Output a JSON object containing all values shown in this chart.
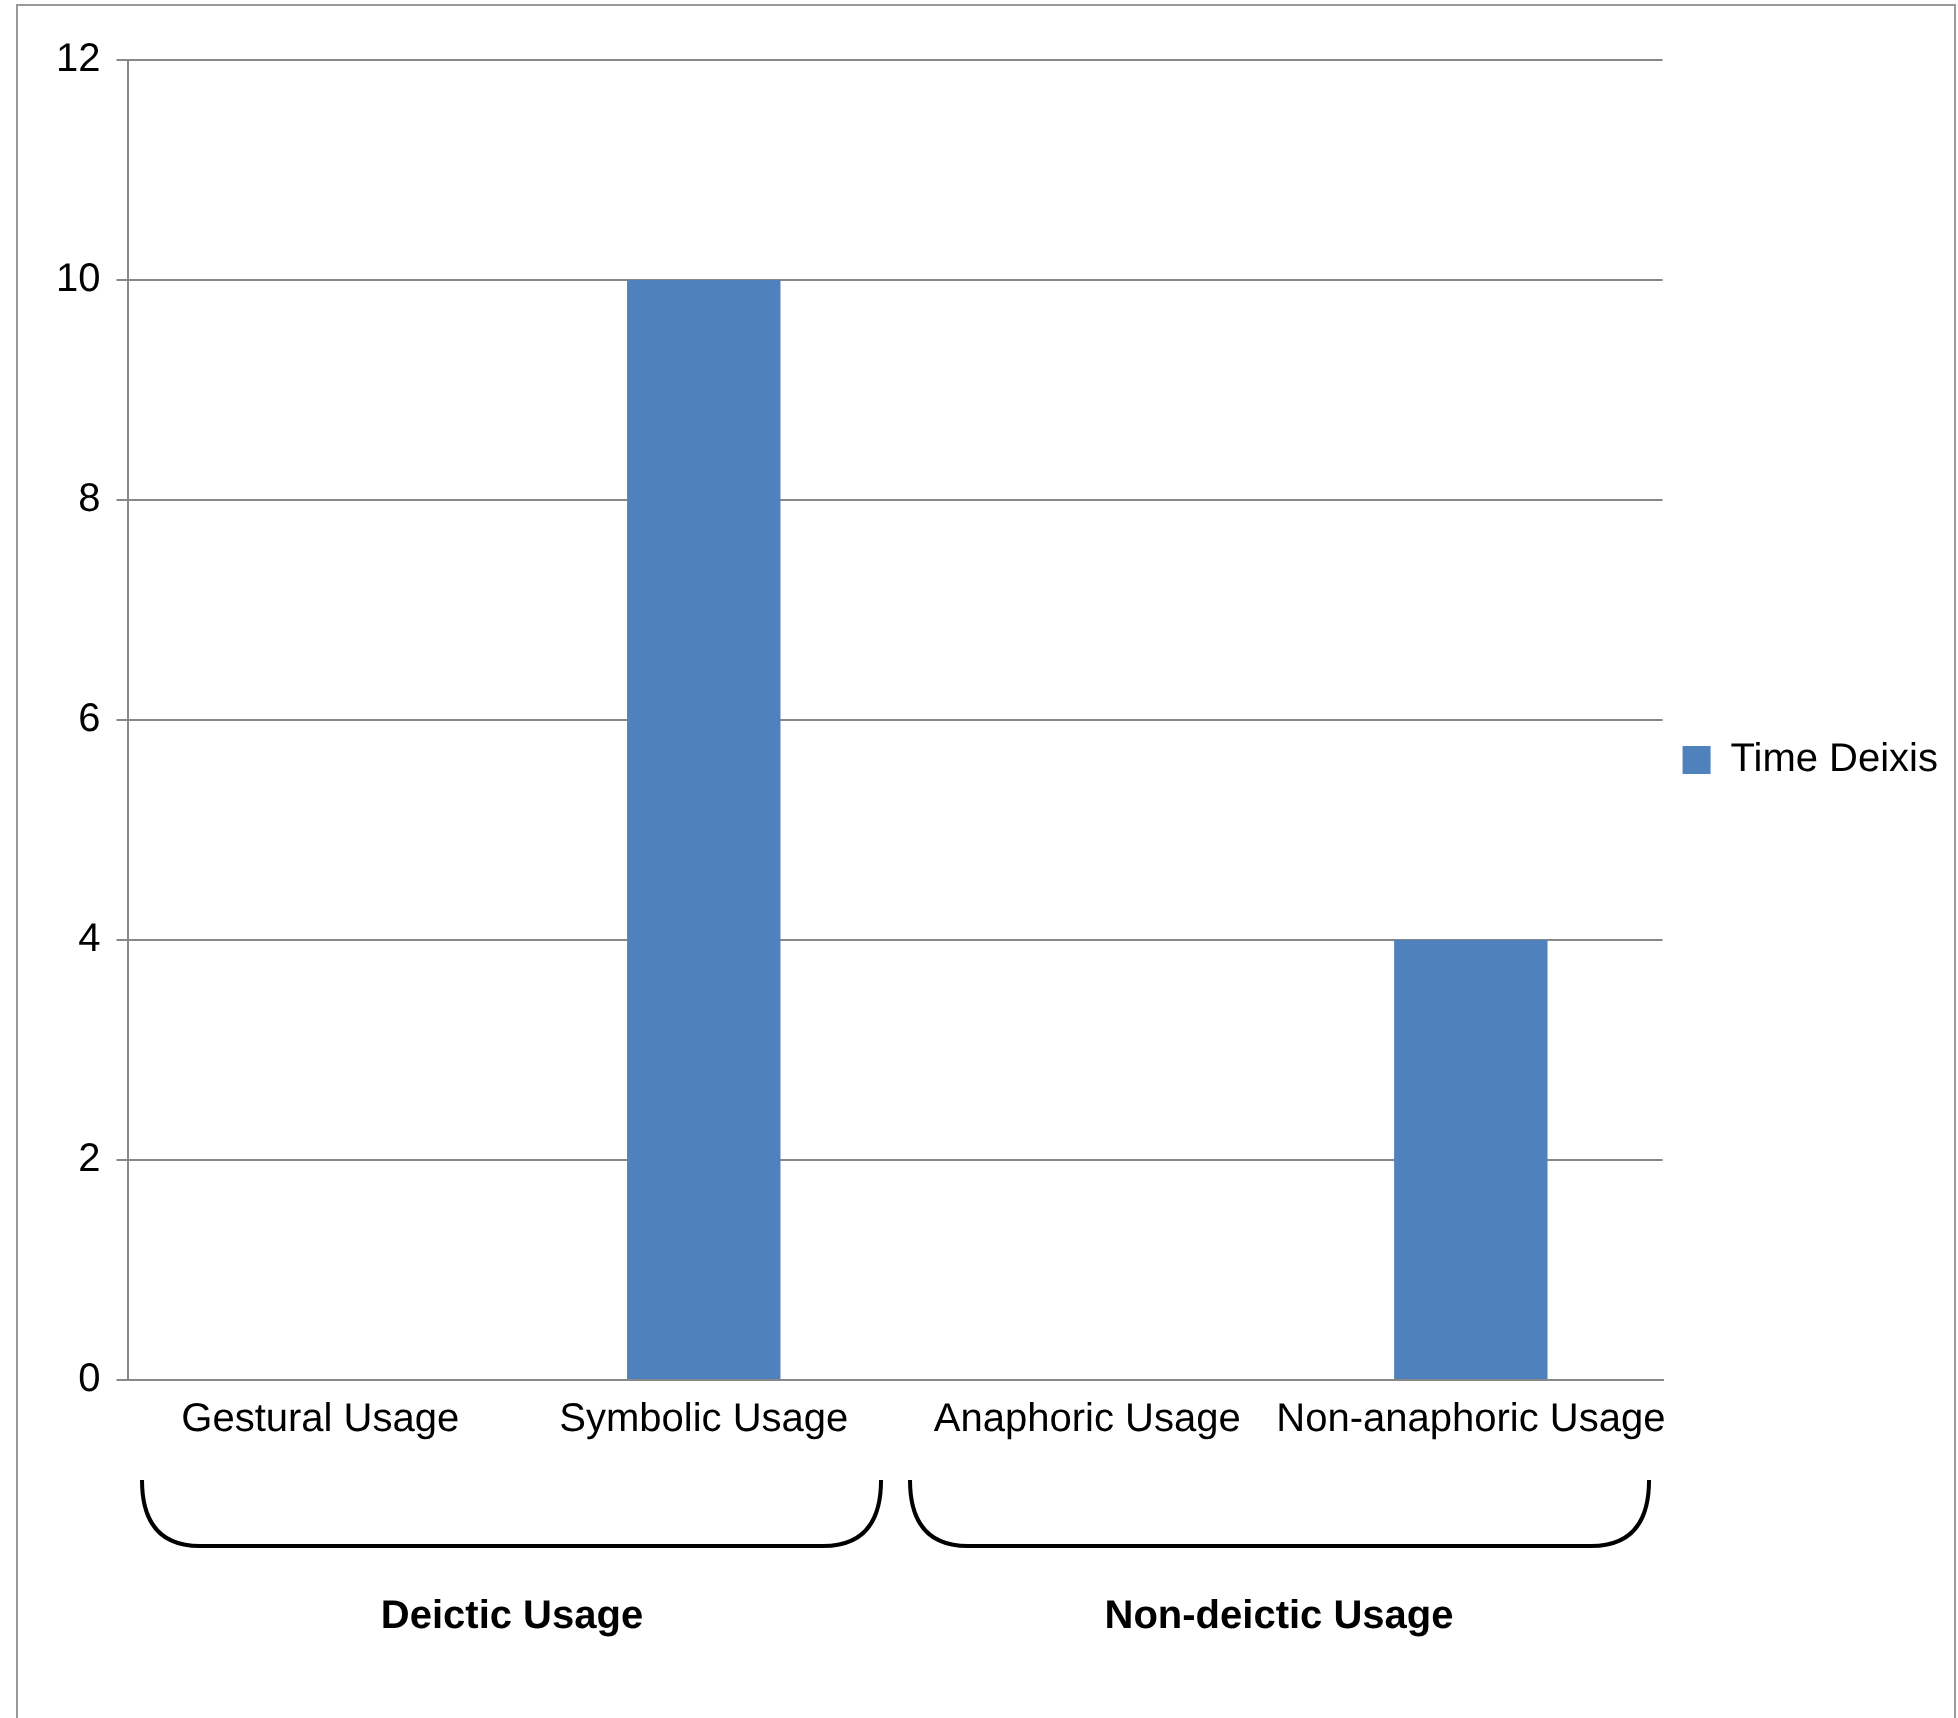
{
  "chart_data": {
    "type": "bar",
    "categories": [
      "Gestural Usage",
      "Symbolic Usage",
      "Anaphoric Usage",
      "Non-anaphoric Usage"
    ],
    "series": [
      {
        "name": "Time Deixis",
        "color": "#4f81bd",
        "values": [
          0,
          10,
          0,
          4
        ]
      }
    ],
    "ylim": [
      0,
      12
    ],
    "yticks": [
      0,
      2,
      4,
      6,
      8,
      10,
      12
    ],
    "grid": "y",
    "legend": "right",
    "annotations": [
      "Deictic Usage",
      "Non-deictic Usage"
    ]
  }
}
